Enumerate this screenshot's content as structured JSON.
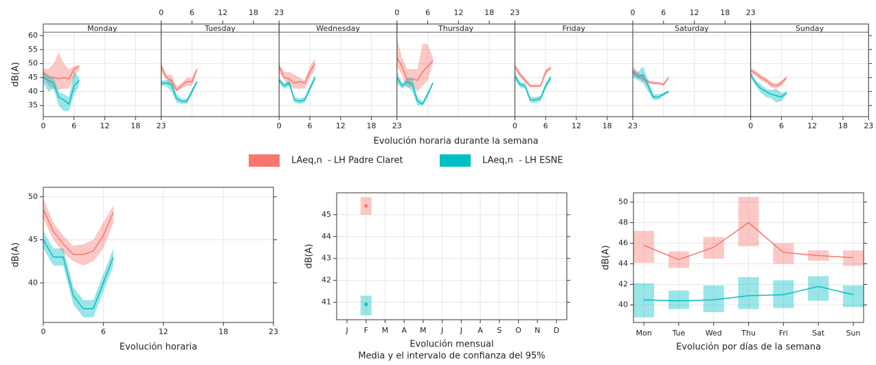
{
  "chart_data": [
    {
      "type": "line",
      "xlabel": "Evolución horaria durante la semana",
      "ylabel": "dB(A)",
      "facets": [
        "Monday",
        "Tuesday",
        "Wednesday",
        "Thursday",
        "Friday",
        "Saturday",
        "Sunday"
      ],
      "x": [
        0,
        1,
        2,
        3,
        4,
        5,
        6,
        7
      ],
      "xlim": [
        0,
        23
      ],
      "xticks": [
        0,
        6,
        12,
        18,
        23
      ],
      "ylim": [
        31,
        61.2
      ],
      "yticks": [
        35,
        40,
        45,
        50,
        55,
        60
      ],
      "grid": true,
      "series": [
        {
          "name": "LAeq,n  - LH Padre Claret",
          "color": "#F8766D",
          "values": [
            [
              47,
              45,
              45,
              44.5,
              45,
              44.5,
              48,
              49
            ],
            [
              49,
              45,
              44,
              40.5,
              42,
              43.5,
              43.5,
              48
            ],
            [
              49,
              45,
              44.5,
              43,
              43.5,
              43,
              47,
              50
            ],
            [
              52,
              49,
              44,
              44.5,
              44,
              47,
              49,
              51
            ],
            [
              49,
              46,
              44,
              42,
              42,
              42,
              47,
              48.5
            ],
            [
              47.5,
              46,
              44.5,
              43.5,
              43,
              43,
              42.5,
              45
            ],
            [
              47.5,
              46.5,
              45,
              44,
              42.5,
              42,
              43,
              45
            ]
          ],
          "lower": [
            [
              45,
              42,
              41,
              40.5,
              41,
              41,
              45,
              48
            ],
            [
              47,
              44,
              42,
              40,
              41,
              42,
              42,
              47.5
            ],
            [
              47,
              44,
              42,
              41,
              41,
              41,
              45,
              48
            ],
            [
              49,
              46,
              41,
              42,
              40,
              42,
              44,
              50
            ],
            [
              48,
              45,
              43,
              41.5,
              41.5,
              41.5,
              46,
              48
            ],
            [
              46,
              45,
              43.5,
              43,
              42.5,
              42.5,
              42,
              44.5
            ],
            [
              46.5,
              45.5,
              44,
              43,
              41.5,
              41,
              42,
              44.5
            ]
          ],
          "upper": [
            [
              48,
              48,
              50,
              54,
              50,
              48,
              49,
              49.5
            ],
            [
              50,
              46,
              46,
              42,
              43,
              45,
              45,
              48.5
            ],
            [
              50,
              47,
              47,
              46,
              45,
              44,
              49,
              52
            ],
            [
              59,
              52,
              48,
              48,
              48,
              57,
              57,
              52
            ],
            [
              50,
              47,
              45,
              42.5,
              42.5,
              42.5,
              48,
              49
            ],
            [
              49,
              47,
              45.5,
              44,
              43.5,
              43.5,
              43,
              45.5
            ],
            [
              48.5,
              47.5,
              46,
              45,
              43.5,
              43,
              44,
              45.5
            ]
          ]
        },
        {
          "name": "LAeq,n  - LH ESNE",
          "color": "#00BFC4",
          "values": [
            [
              45,
              44,
              43,
              38,
              37,
              35.5,
              42,
              44
            ],
            [
              43,
              43,
              42.5,
              37.5,
              36.5,
              36.5,
              40,
              43.5
            ],
            [
              44,
              42,
              43,
              37,
              36.5,
              37,
              41,
              45
            ],
            [
              45,
              42,
              43.5,
              42.5,
              36.5,
              35.5,
              39,
              43
            ],
            [
              45.5,
              42.5,
              42,
              37,
              37,
              37.5,
              42,
              45
            ],
            [
              47,
              45,
              46,
              42,
              38,
              38,
              39,
              40
            ],
            [
              46,
              43,
              41,
              40,
              39,
              38.5,
              38,
              39.5
            ]
          ],
          "lower": [
            [
              43,
              40,
              41,
              35,
              33,
              33,
              39,
              42
            ],
            [
              42,
              42,
              40,
              36,
              35.5,
              35.5,
              39,
              43
            ],
            [
              43,
              41,
              42,
              36,
              35.5,
              36,
              40,
              44
            ],
            [
              43,
              41,
              42,
              40,
              35,
              35,
              38,
              42.5
            ],
            [
              44,
              41.5,
              41,
              36,
              36,
              36.5,
              41,
              44
            ],
            [
              45,
              44,
              43,
              40,
              37,
              37,
              38.5,
              39.5
            ],
            [
              45,
              42,
              39.5,
              38,
              37.5,
              36,
              36.5,
              39
            ]
          ],
          "upper": [
            [
              47,
              46,
              45,
              40,
              39,
              38,
              47,
              45
            ],
            [
              44,
              44,
              44,
              39,
              37.5,
              37.5,
              41,
              44
            ],
            [
              45,
              43,
              44,
              38,
              37.5,
              38,
              42,
              46
            ],
            [
              47,
              43,
              45,
              45,
              38,
              36.5,
              40,
              43.5
            ],
            [
              47,
              43.5,
              43,
              38,
              38,
              38.5,
              43,
              46
            ],
            [
              48,
              47,
              49,
              44,
              39,
              39,
              39.5,
              40.5
            ],
            [
              47,
              44,
              42.5,
              41,
              40.5,
              41,
              39.5,
              40
            ]
          ]
        }
      ]
    },
    {
      "type": "line",
      "xlabel": "Evolución horaria",
      "ylabel": "dB(A)",
      "x": [
        0,
        1,
        2,
        3,
        4,
        5,
        6,
        7
      ],
      "xlim": [
        0,
        23
      ],
      "xticks": [
        0,
        6,
        12,
        18,
        23
      ],
      "ylim": [
        35.4,
        51.1
      ],
      "yticks": [
        40,
        45,
        50
      ],
      "grid": true,
      "series": [
        {
          "name": "LAeq,n  - LH Padre Claret",
          "color": "#F8766D",
          "values": [
            48.5,
            46,
            44.5,
            43.3,
            43.3,
            43.7,
            45.5,
            48.2
          ],
          "lower": [
            47.5,
            45,
            43.5,
            42.5,
            42,
            42.5,
            44,
            47
          ],
          "upper": [
            49.8,
            47,
            45.5,
            44.3,
            44.5,
            45,
            47,
            49
          ]
        },
        {
          "name": "LAeq,n  - LH ESNE",
          "color": "#00BFC4",
          "values": [
            45,
            43,
            43,
            38.5,
            37,
            37,
            40,
            43
          ],
          "lower": [
            44,
            42,
            42,
            37.5,
            36,
            36,
            39,
            42
          ],
          "upper": [
            46,
            44,
            44,
            39.5,
            38,
            38,
            41,
            44
          ]
        }
      ]
    },
    {
      "type": "point",
      "xlabel": "Evolución mensual",
      "subtitle": "Media y el intervalo de confianza del 95%",
      "ylabel": "dB(A)",
      "categories": [
        "J",
        "F",
        "M",
        "A",
        "M",
        "J",
        "J",
        "A",
        "S",
        "O",
        "N",
        "D"
      ],
      "ylim": [
        40.2,
        46
      ],
      "yticks": [
        41,
        42,
        43,
        44,
        45
      ],
      "grid": true,
      "series": [
        {
          "name": "LAeq,n  - LH Padre Claret",
          "color": "#F8766D",
          "values": [
            null,
            45.4,
            null,
            null,
            null,
            null,
            null,
            null,
            null,
            null,
            null,
            null
          ],
          "lower": [
            null,
            45,
            null,
            null,
            null,
            null,
            null,
            null,
            null,
            null,
            null,
            null
          ],
          "upper": [
            null,
            45.8,
            null,
            null,
            null,
            null,
            null,
            null,
            null,
            null,
            null,
            null
          ]
        },
        {
          "name": "LAeq,n  - LH ESNE",
          "color": "#00BFC4",
          "values": [
            null,
            40.9,
            null,
            null,
            null,
            null,
            null,
            null,
            null,
            null,
            null,
            null
          ],
          "lower": [
            null,
            40.4,
            null,
            null,
            null,
            null,
            null,
            null,
            null,
            null,
            null,
            null
          ],
          "upper": [
            null,
            41.3,
            null,
            null,
            null,
            null,
            null,
            null,
            null,
            null,
            null,
            null
          ]
        }
      ]
    },
    {
      "type": "line",
      "xlabel": "Evolución por días de la semana",
      "ylabel": "dB(A)",
      "categories": [
        "Mon",
        "Tue",
        "Wed",
        "Thu",
        "Fri",
        "Sat",
        "Sun"
      ],
      "ylim": [
        38.3,
        50.9
      ],
      "yticks": [
        40,
        42,
        44,
        46,
        48,
        50
      ],
      "grid": true,
      "series": [
        {
          "name": "LAeq,n  - LH Padre Claret",
          "color": "#F8766D",
          "values": [
            45.8,
            44.4,
            45.6,
            48,
            45.1,
            44.8,
            44.6
          ],
          "lower": [
            44.1,
            43.6,
            44.5,
            45.7,
            44,
            44.3,
            43.8
          ],
          "upper": [
            47.2,
            45.2,
            46.6,
            50.5,
            46,
            45.3,
            45.3
          ]
        },
        {
          "name": "LAeq,n  - LH ESNE",
          "color": "#00BFC4",
          "values": [
            40.5,
            40.4,
            40.5,
            40.9,
            41,
            41.8,
            41
          ],
          "lower": [
            38.8,
            39.6,
            39.3,
            39.6,
            39.7,
            40.4,
            39.8
          ],
          "upper": [
            42.1,
            41.4,
            41.9,
            42.7,
            42.4,
            42.8,
            41.9
          ]
        }
      ]
    }
  ]
}
